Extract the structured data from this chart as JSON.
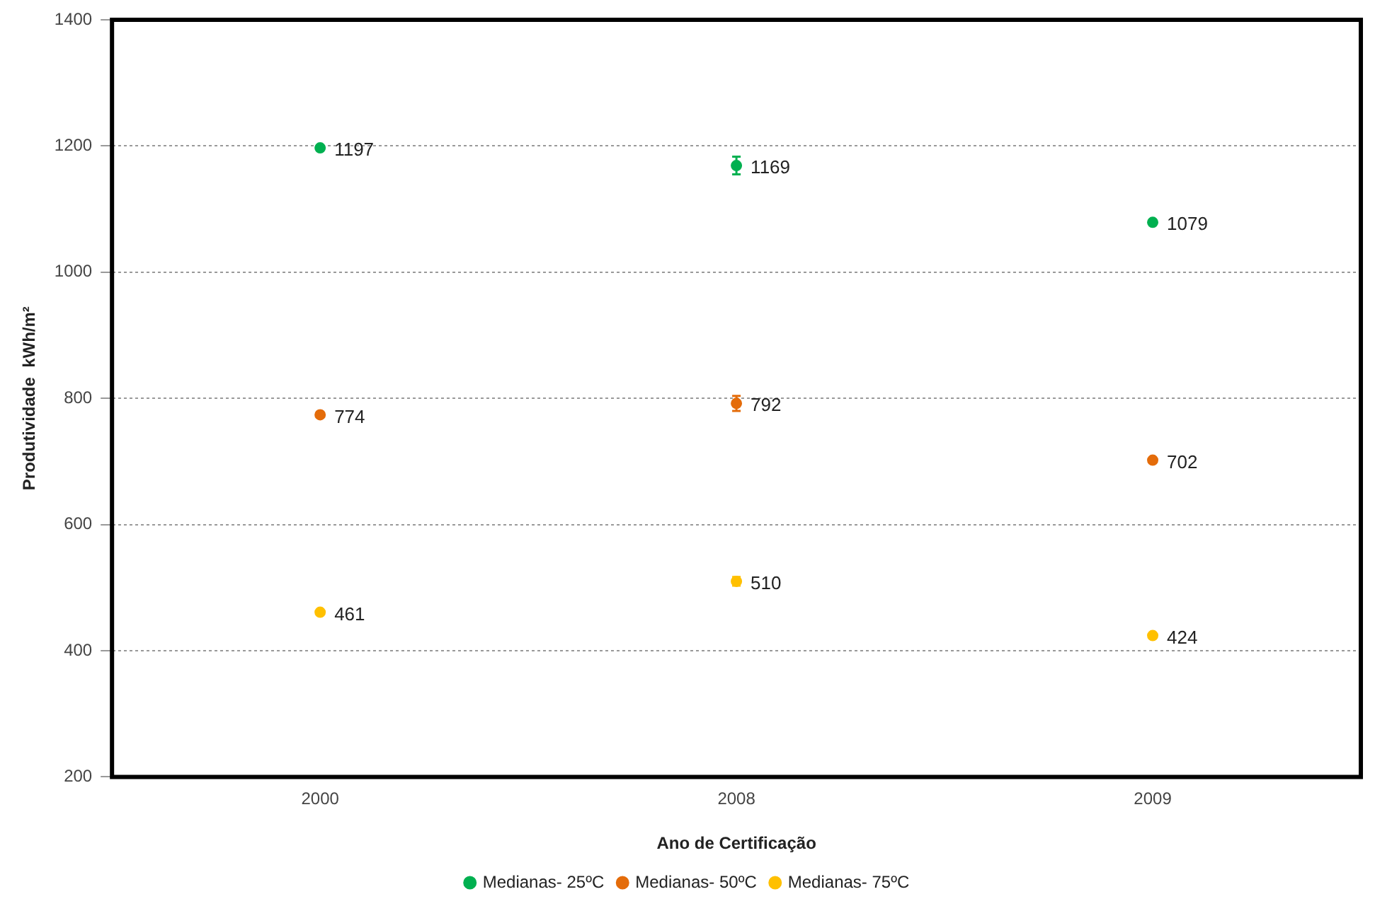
{
  "chart_data": {
    "type": "scatter",
    "xlabel": "Ano de Certificação",
    "ylabel": "Produtividade  kWh/m²",
    "categories": [
      "2000",
      "2008",
      "2009"
    ],
    "series": [
      {
        "name": "Medianas- 25ºC",
        "color": "#00b050",
        "values": [
          1197,
          1169,
          1079
        ],
        "errors": [
          null,
          14,
          null
        ]
      },
      {
        "name": "Medianas- 50ºC",
        "color": "#e46c0a",
        "values": [
          774,
          792,
          702
        ],
        "errors": [
          null,
          12,
          null
        ]
      },
      {
        "name": "Medianas- 75ºC",
        "color": "#ffc000",
        "values": [
          461,
          510,
          424
        ],
        "errors": [
          null,
          7,
          null
        ]
      }
    ],
    "ylim": [
      200,
      1400
    ],
    "yticks": [
      200,
      400,
      600,
      800,
      1000,
      1200,
      1400
    ],
    "grid": "y",
    "legend": "bottom",
    "marker": "circle",
    "data_labels": true
  }
}
